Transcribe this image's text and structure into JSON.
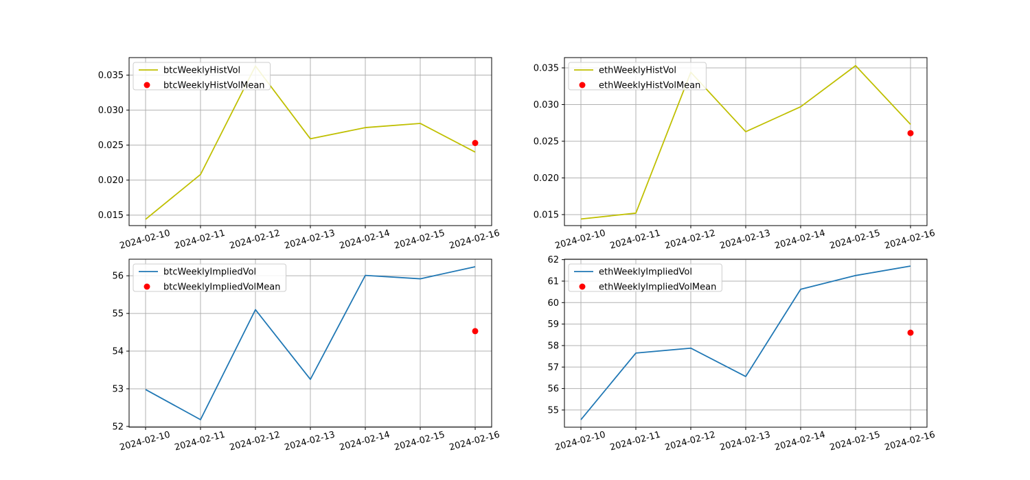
{
  "chart_data": [
    {
      "type": "line",
      "x": [
        "2024-02-10",
        "2024-02-11",
        "2024-02-12",
        "2024-02-13",
        "2024-02-14",
        "2024-02-15",
        "2024-02-16"
      ],
      "series": [
        {
          "name": "btcWeeklyHistVol",
          "kind": "line",
          "color": "#bfbf00",
          "values": [
            0.0144,
            0.0208,
            0.0363,
            0.0259,
            0.0275,
            0.0281,
            0.024
          ]
        }
      ],
      "mean": {
        "name": "btcWeeklyHistVolMean",
        "kind": "scatter",
        "color": "#ff0000",
        "x": "2024-02-16",
        "value": 0.0253
      },
      "ylim": [
        0.0135,
        0.0375
      ],
      "yticks": [
        0.015,
        0.02,
        0.025,
        0.03,
        0.035
      ],
      "ytick_labels": [
        "0.015",
        "0.020",
        "0.025",
        "0.030",
        "0.035"
      ],
      "grid": true,
      "legend": "upper-left"
    },
    {
      "type": "line",
      "x": [
        "2024-02-10",
        "2024-02-11",
        "2024-02-12",
        "2024-02-13",
        "2024-02-14",
        "2024-02-15",
        "2024-02-16"
      ],
      "series": [
        {
          "name": "ethWeeklyHistVol",
          "kind": "line",
          "color": "#bfbf00",
          "values": [
            0.0144,
            0.0152,
            0.0344,
            0.0263,
            0.0297,
            0.0353,
            0.0273
          ]
        }
      ],
      "mean": {
        "name": "ethWeeklyHistVolMean",
        "kind": "scatter",
        "color": "#ff0000",
        "x": "2024-02-16",
        "value": 0.0261
      },
      "ylim": [
        0.0135,
        0.0364
      ],
      "yticks": [
        0.015,
        0.02,
        0.025,
        0.03,
        0.035
      ],
      "ytick_labels": [
        "0.015",
        "0.020",
        "0.025",
        "0.030",
        "0.035"
      ],
      "grid": true,
      "legend": "upper-left"
    },
    {
      "type": "line",
      "x": [
        "2024-02-10",
        "2024-02-11",
        "2024-02-12",
        "2024-02-13",
        "2024-02-14",
        "2024-02-15",
        "2024-02-16"
      ],
      "series": [
        {
          "name": "btcWeeklyImpliedVol",
          "kind": "line",
          "color": "#1f77b4",
          "values": [
            52.98,
            52.18,
            55.1,
            53.25,
            56.01,
            55.92,
            56.24
          ]
        }
      ],
      "mean": {
        "name": "btcWeeklyImpliedVolMean",
        "kind": "scatter",
        "color": "#ff0000",
        "x": "2024-02-16",
        "value": 54.53
      },
      "ylim": [
        51.98,
        56.44
      ],
      "yticks": [
        52,
        53,
        54,
        55,
        56
      ],
      "ytick_labels": [
        "52",
        "53",
        "54",
        "55",
        "56"
      ],
      "grid": true,
      "legend": "upper-left"
    },
    {
      "type": "line",
      "x": [
        "2024-02-10",
        "2024-02-11",
        "2024-02-12",
        "2024-02-13",
        "2024-02-14",
        "2024-02-15",
        "2024-02-16"
      ],
      "series": [
        {
          "name": "ethWeeklyImpliedVol",
          "kind": "line",
          "color": "#1f77b4",
          "values": [
            54.55,
            57.65,
            57.88,
            56.56,
            60.62,
            61.26,
            61.7
          ]
        }
      ],
      "mean": {
        "name": "ethWeeklyImpliedVolMean",
        "kind": "scatter",
        "color": "#ff0000",
        "x": "2024-02-16",
        "value": 58.6
      },
      "ylim": [
        54.2,
        62.02
      ],
      "yticks": [
        55,
        56,
        57,
        58,
        59,
        60,
        61,
        62
      ],
      "ytick_labels": [
        "55",
        "56",
        "57",
        "58",
        "59",
        "60",
        "61",
        "62"
      ],
      "grid": true,
      "legend": "upper-left"
    }
  ]
}
